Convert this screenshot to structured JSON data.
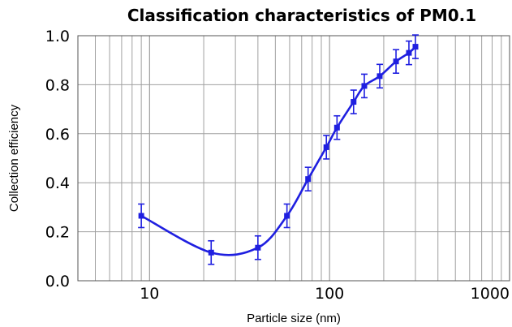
{
  "chart_data": {
    "type": "line",
    "title": "Classification characteristics of PM0.1",
    "xlabel": "Particle size (nm)",
    "ylabel": "Collection efficiency",
    "x_scale": "log",
    "xlim": [
      4,
      1000
    ],
    "ylim": [
      0,
      1.0
    ],
    "x_ticks": [
      "10",
      "100",
      "1000"
    ],
    "y_ticks": [
      "0.0",
      "0.2",
      "0.4",
      "0.6",
      "0.8",
      "1.0"
    ],
    "grid": true,
    "legend": "none",
    "series": [
      {
        "color": "#1f1fe0",
        "marker": "square",
        "smooth": true,
        "error_bars": true,
        "points": [
          {
            "x": 9,
            "y": 0.265,
            "err": 0.048
          },
          {
            "x": 22,
            "y": 0.115,
            "err": 0.048
          },
          {
            "x": 40,
            "y": 0.135,
            "err": 0.048
          },
          {
            "x": 58,
            "y": 0.265,
            "err": 0.048
          },
          {
            "x": 76,
            "y": 0.415,
            "err": 0.048
          },
          {
            "x": 96,
            "y": 0.545,
            "err": 0.048
          },
          {
            "x": 110,
            "y": 0.625,
            "err": 0.048
          },
          {
            "x": 136,
            "y": 0.73,
            "err": 0.048
          },
          {
            "x": 156,
            "y": 0.795,
            "err": 0.048
          },
          {
            "x": 190,
            "y": 0.835,
            "err": 0.048
          },
          {
            "x": 234,
            "y": 0.895,
            "err": 0.048
          },
          {
            "x": 276,
            "y": 0.93,
            "err": 0.048
          },
          {
            "x": 300,
            "y": 0.955,
            "err": 0.048
          }
        ]
      }
    ]
  }
}
